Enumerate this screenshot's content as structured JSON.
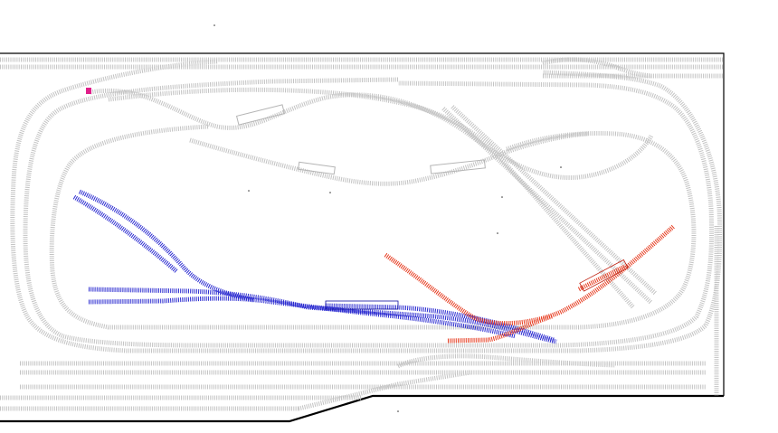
{
  "diagram": {
    "type": "model-railway-track-plan",
    "colors": {
      "background": "#ffffff",
      "existing_track": "#c3c3c3",
      "blue_track": "#2a2ad0",
      "red_track": "#e63a1e",
      "marker": "#e0208a",
      "baseboard": "#000000"
    },
    "tracks": [
      {
        "id": "outer-loop",
        "group": "grey"
      },
      {
        "id": "second-loop",
        "group": "grey"
      },
      {
        "id": "inner-loop",
        "group": "grey"
      },
      {
        "id": "figure-eight",
        "group": "grey"
      },
      {
        "id": "diagonal-spur",
        "group": "grey"
      },
      {
        "id": "straight-sidings",
        "group": "grey"
      },
      {
        "id": "blue-sidings",
        "group": "blue"
      },
      {
        "id": "red-junction",
        "group": "red"
      }
    ]
  }
}
